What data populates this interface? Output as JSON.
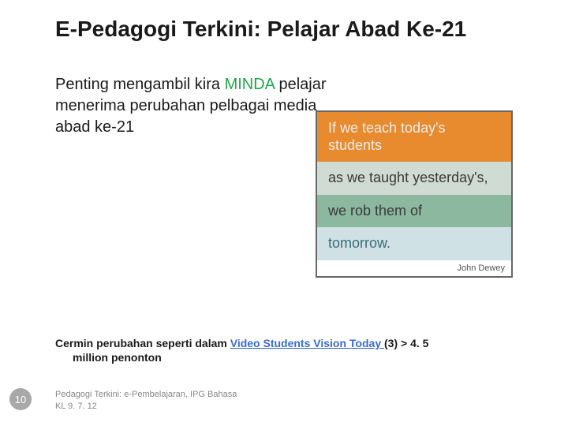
{
  "title": "E-Pedagogi Terkini: Pelajar Abad Ke-21",
  "body": {
    "before_highlight": "Penting mengambil kira ",
    "highlight": "MINDA",
    "after_highlight": " pelajar menerima perubahan pelbagai media abad ke-21"
  },
  "quote_panel": {
    "strips": [
      {
        "text": "If we teach today's students",
        "bg": "#e88b2e",
        "fg": "#ececec"
      },
      {
        "text": "as we taught yesterday's,",
        "bg": "#d0dbd3",
        "fg": "#3a3a3a"
      },
      {
        "text": "we rob them of",
        "bg": "#8bb89f",
        "fg": "#3a3a3a"
      },
      {
        "text": "tomorrow.",
        "bg": "#cfe1e4",
        "fg": "#3a6c78"
      }
    ],
    "attribution": "John Dewey",
    "border_color": "#666666",
    "font_family": "Comic Sans MS"
  },
  "caption": {
    "before_link": "Cermin perubahan  seperti dalam ",
    "link_text": "Video  Students Vision Today ",
    "after_link": " (3) > 4. 5",
    "line2": "million penonton",
    "link_color": "#3b6bcc"
  },
  "footer": {
    "line1": "Pedagogi Terkini: e-Pembelajaran, IPG Bahasa",
    "line2": "KL 9. 7. 12",
    "color": "#888888"
  },
  "slide_number": "10",
  "slide_number_bg": "#a8a8a8",
  "background_color": "#ffffff"
}
